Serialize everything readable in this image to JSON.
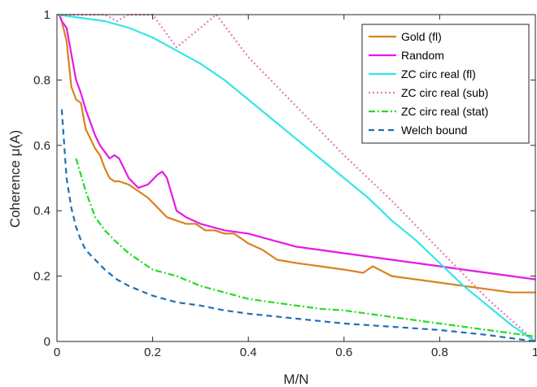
{
  "chart_data": {
    "type": "line",
    "xlabel": "M/N",
    "ylabel": "Coherence μ(A)",
    "xlim": [
      0,
      1
    ],
    "ylim": [
      0,
      1
    ],
    "xticks": [
      "0",
      "0.2",
      "0.4",
      "0.6",
      "0.8",
      "1"
    ],
    "yticks": [
      "0",
      "0.2",
      "0.4",
      "0.6",
      "0.8",
      "1"
    ],
    "xtick_values": [
      0,
      0.2,
      0.4,
      0.6,
      0.8,
      1
    ],
    "ytick_values": [
      0,
      0.2,
      0.4,
      0.6,
      0.8,
      1
    ],
    "grid": false,
    "legend_position": "top-right",
    "series": [
      {
        "name": "Gold (fl)",
        "color": "#D9821E",
        "dash": "solid",
        "x": [
          0.005,
          0.01,
          0.02,
          0.03,
          0.04,
          0.05,
          0.06,
          0.07,
          0.08,
          0.09,
          0.1,
          0.11,
          0.12,
          0.13,
          0.15,
          0.17,
          0.19,
          0.21,
          0.23,
          0.25,
          0.27,
          0.29,
          0.31,
          0.33,
          0.35,
          0.37,
          0.4,
          0.43,
          0.46,
          0.5,
          0.55,
          0.6,
          0.64,
          0.66,
          0.7,
          0.75,
          0.8,
          0.85,
          0.9,
          0.95,
          1.0
        ],
        "y": [
          1.0,
          0.98,
          0.92,
          0.78,
          0.74,
          0.73,
          0.65,
          0.62,
          0.59,
          0.57,
          0.53,
          0.5,
          0.49,
          0.49,
          0.48,
          0.46,
          0.44,
          0.41,
          0.38,
          0.37,
          0.36,
          0.36,
          0.34,
          0.34,
          0.33,
          0.33,
          0.3,
          0.28,
          0.25,
          0.24,
          0.23,
          0.22,
          0.21,
          0.23,
          0.2,
          0.19,
          0.18,
          0.17,
          0.16,
          0.15,
          0.15
        ]
      },
      {
        "name": "Random",
        "color": "#E619E6",
        "dash": "solid",
        "x": [
          0.005,
          0.01,
          0.02,
          0.03,
          0.04,
          0.05,
          0.06,
          0.07,
          0.08,
          0.09,
          0.1,
          0.11,
          0.12,
          0.13,
          0.15,
          0.17,
          0.19,
          0.21,
          0.22,
          0.23,
          0.25,
          0.27,
          0.3,
          0.35,
          0.4,
          0.45,
          0.5,
          0.55,
          0.6,
          0.65,
          0.7,
          0.75,
          0.8,
          0.85,
          0.9,
          0.95,
          1.0
        ],
        "y": [
          1.0,
          0.98,
          0.96,
          0.88,
          0.8,
          0.76,
          0.71,
          0.67,
          0.63,
          0.6,
          0.58,
          0.56,
          0.57,
          0.56,
          0.5,
          0.47,
          0.48,
          0.51,
          0.52,
          0.5,
          0.4,
          0.38,
          0.36,
          0.34,
          0.33,
          0.31,
          0.29,
          0.28,
          0.27,
          0.26,
          0.25,
          0.24,
          0.23,
          0.22,
          0.21,
          0.2,
          0.19
        ]
      },
      {
        "name": "ZC circ real (fl)",
        "color": "#33E6E6",
        "dash": "solid",
        "x": [
          0.0,
          0.05,
          0.1,
          0.15,
          0.2,
          0.25,
          0.3,
          0.35,
          0.4,
          0.45,
          0.5,
          0.55,
          0.6,
          0.65,
          0.7,
          0.75,
          0.8,
          0.85,
          0.9,
          0.95,
          1.0
        ],
        "y": [
          1.0,
          0.99,
          0.98,
          0.96,
          0.93,
          0.89,
          0.85,
          0.8,
          0.74,
          0.68,
          0.62,
          0.56,
          0.5,
          0.44,
          0.37,
          0.31,
          0.24,
          0.17,
          0.11,
          0.05,
          0.0
        ]
      },
      {
        "name": "ZC circ real (sub)",
        "color": "#E87BB7",
        "dash": "dotted",
        "x": [
          0.0,
          0.05,
          0.1,
          0.125,
          0.15,
          0.2,
          0.25,
          0.3,
          0.333,
          0.4,
          0.5,
          0.6,
          0.7,
          0.8,
          0.9,
          1.0
        ],
        "y": [
          1.0,
          1.0,
          1.0,
          0.98,
          1.0,
          1.0,
          0.9,
          0.96,
          1.0,
          0.87,
          0.72,
          0.57,
          0.43,
          0.28,
          0.13,
          0.0
        ]
      },
      {
        "name": "ZC circ real (stat)",
        "color": "#22DD22",
        "dash": "dashdot",
        "x": [
          0.04,
          0.06,
          0.08,
          0.1,
          0.12,
          0.15,
          0.2,
          0.25,
          0.3,
          0.35,
          0.4,
          0.45,
          0.5,
          0.55,
          0.6,
          0.65,
          0.7,
          0.75,
          0.8,
          0.85,
          0.9,
          0.95,
          1.0
        ],
        "y": [
          0.56,
          0.46,
          0.38,
          0.34,
          0.31,
          0.27,
          0.22,
          0.2,
          0.17,
          0.15,
          0.13,
          0.12,
          0.11,
          0.1,
          0.095,
          0.085,
          0.075,
          0.065,
          0.055,
          0.045,
          0.035,
          0.025,
          0.015
        ]
      },
      {
        "name": "Welch bound",
        "color": "#1F6FB4",
        "dash": "dashed",
        "x": [
          0.01,
          0.02,
          0.03,
          0.04,
          0.05,
          0.06,
          0.08,
          0.1,
          0.125,
          0.15,
          0.2,
          0.25,
          0.3,
          0.35,
          0.4,
          0.5,
          0.6,
          0.7,
          0.8,
          0.9,
          0.95,
          1.0
        ],
        "y": [
          0.71,
          0.5,
          0.41,
          0.35,
          0.31,
          0.28,
          0.25,
          0.22,
          0.19,
          0.17,
          0.14,
          0.12,
          0.11,
          0.095,
          0.085,
          0.07,
          0.055,
          0.045,
          0.035,
          0.02,
          0.01,
          0.0
        ]
      }
    ]
  }
}
